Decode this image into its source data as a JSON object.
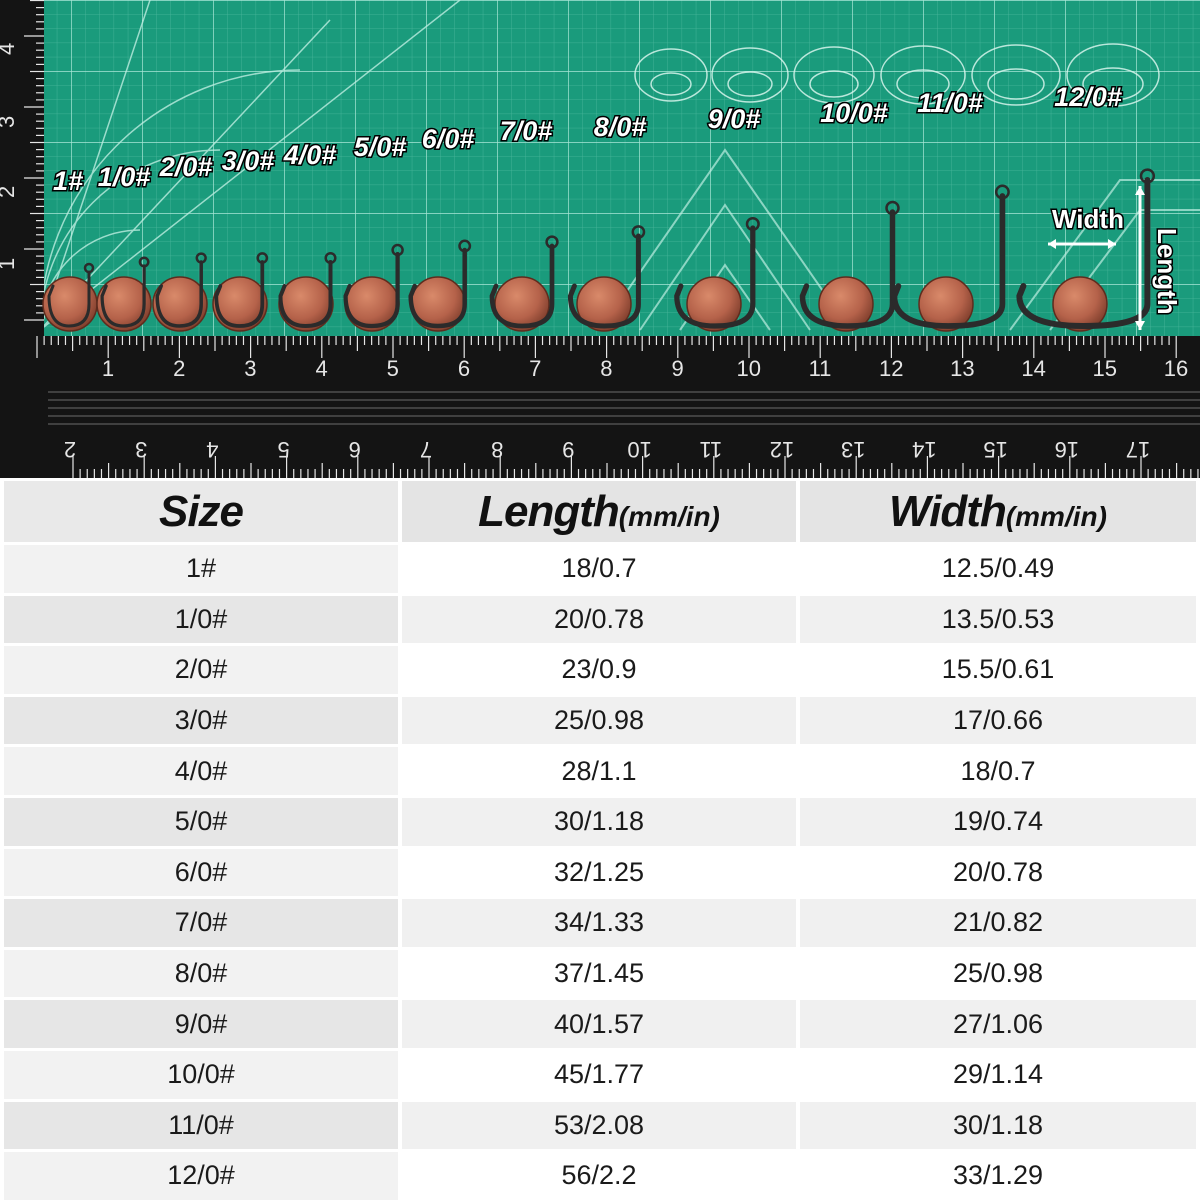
{
  "photo": {
    "size_labels": [
      "1#",
      "1/0#",
      "2/0#",
      "3/0#",
      "4/0#",
      "5/0#",
      "6/0#",
      "7/0#",
      "8/0#",
      "9/0#",
      "10/0#",
      "11/0#",
      "12/0#"
    ],
    "width_label": "Width",
    "length_label": "Length",
    "ruler_top_numbers": [
      "1",
      "2",
      "3",
      "4",
      "5",
      "6",
      "7",
      "8",
      "9",
      "10",
      "11",
      "12",
      "13",
      "14",
      "15",
      "16"
    ],
    "ruler_bottom_numbers": [
      "2",
      "3",
      "4",
      "5",
      "6",
      "7",
      "8",
      "9",
      "10",
      "11",
      "12",
      "13",
      "14",
      "15",
      "16",
      "17"
    ],
    "ruler_left_numbers": [
      "4",
      "3",
      "2",
      "1"
    ],
    "colors": {
      "mat": "#1a9b7c",
      "grid": "#6fd0b8",
      "ruler": "#141414",
      "penny": "#b5654a",
      "hook": "#2b2b2b"
    }
  },
  "table": {
    "headers": [
      {
        "main": "Size",
        "unit": ""
      },
      {
        "main": "Length",
        "unit": "(mm/in)"
      },
      {
        "main": "Width",
        "unit": "(mm/in)"
      }
    ],
    "rows": [
      [
        "1#",
        "18/0.7",
        "12.5/0.49"
      ],
      [
        "1/0#",
        "20/0.78",
        "13.5/0.53"
      ],
      [
        "2/0#",
        "23/0.9",
        "15.5/0.61"
      ],
      [
        "3/0#",
        "25/0.98",
        "17/0.66"
      ],
      [
        "4/0#",
        "28/1.1",
        "18/0.7"
      ],
      [
        "5/0#",
        "30/1.18",
        "19/0.74"
      ],
      [
        "6/0#",
        "32/1.25",
        "20/0.78"
      ],
      [
        "7/0#",
        "34/1.33",
        "21/0.82"
      ],
      [
        "8/0#",
        "37/1.45",
        "25/0.98"
      ],
      [
        "9/0#",
        "40/1.57",
        "27/1.06"
      ],
      [
        "10/0#",
        "45/1.77",
        "29/1.14"
      ],
      [
        "11/0#",
        "53/2.08",
        "30/1.18"
      ],
      [
        "12/0#",
        "56/2.2",
        "33/1.29"
      ]
    ]
  }
}
